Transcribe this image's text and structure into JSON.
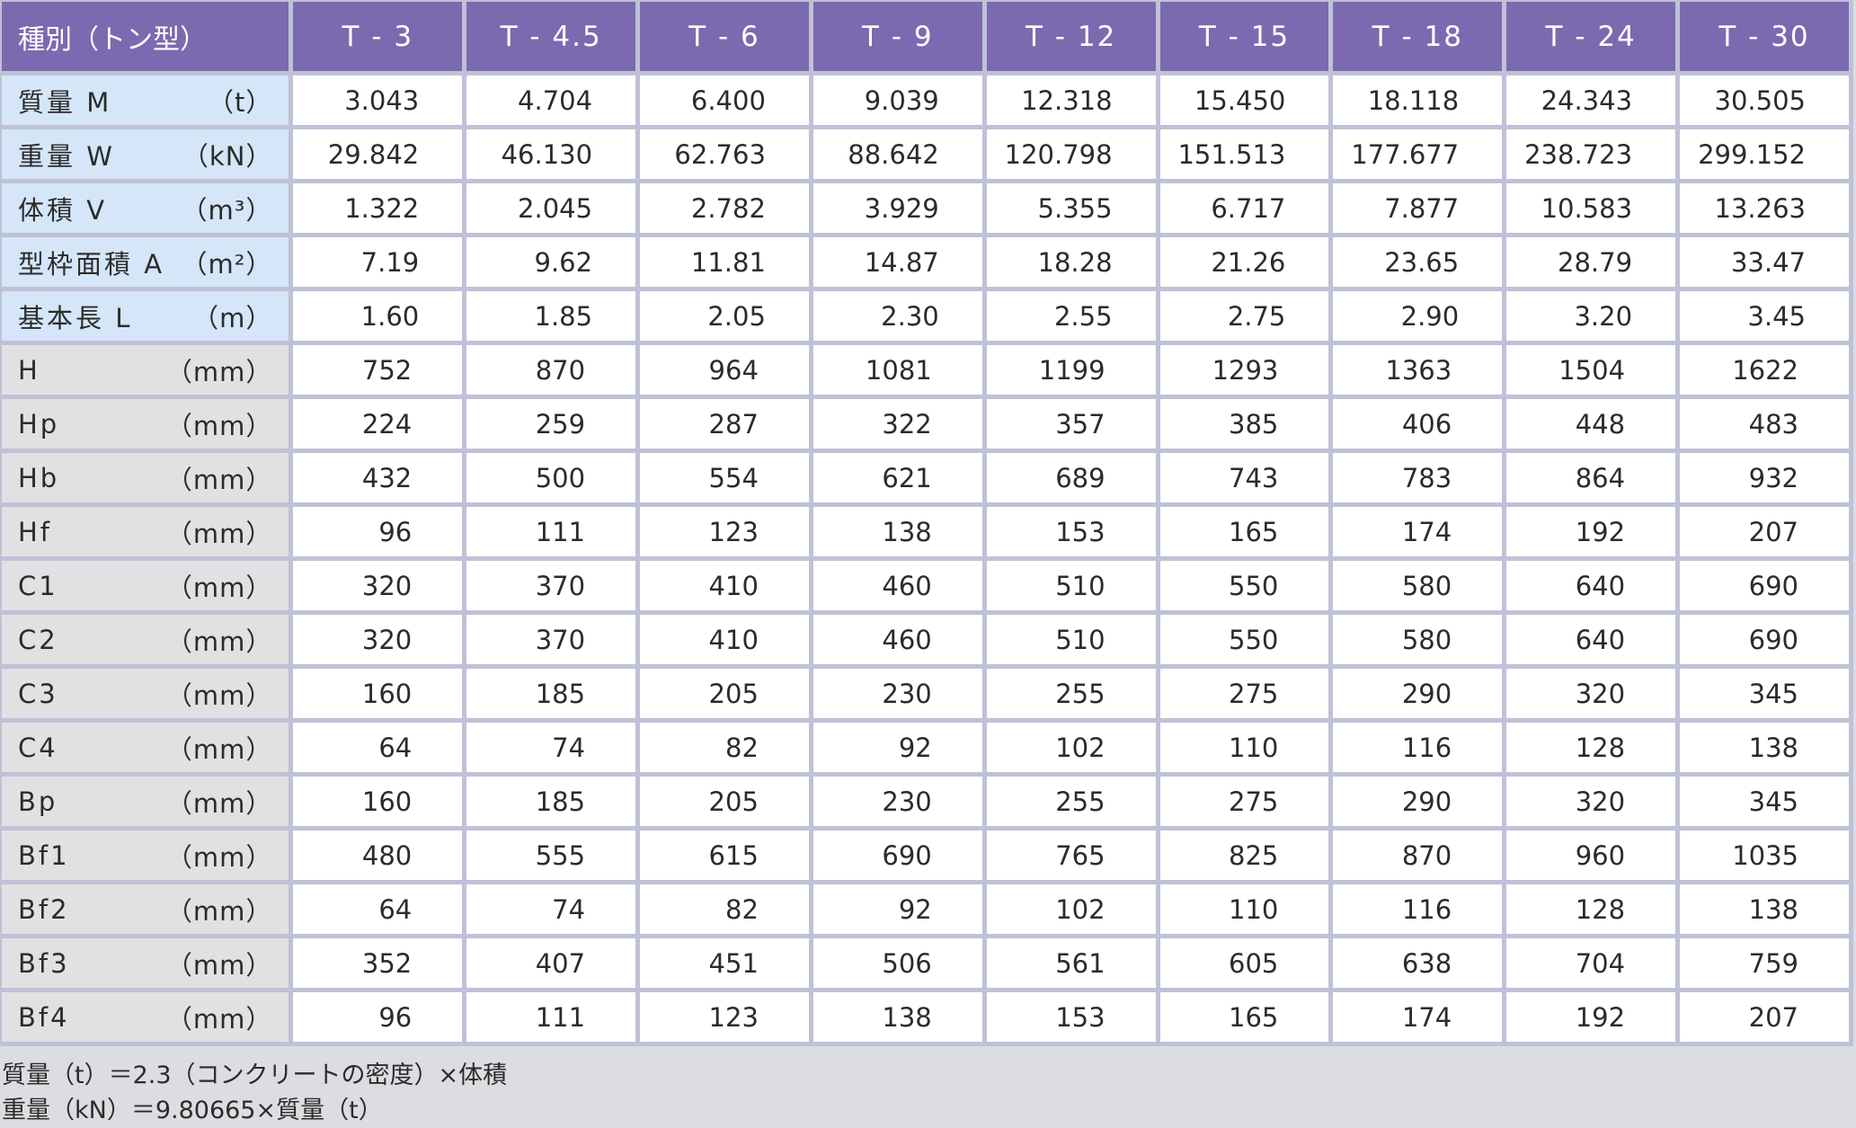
{
  "table": {
    "corner_label": "種別（トン型）",
    "columns": [
      "T - 3",
      "T - 4.5",
      "T - 6",
      "T - 9",
      "T - 12",
      "T - 15",
      "T - 18",
      "T - 24",
      "T - 30"
    ],
    "rows": [
      {
        "name": "質量 M",
        "unit": "（t）",
        "style": "blue",
        "values": [
          "3.043",
          "4.704",
          "6.400",
          "9.039",
          "12.318",
          "15.450",
          "18.118",
          "24.343",
          "30.505"
        ]
      },
      {
        "name": "重量 W",
        "unit": "（kN）",
        "style": "blue",
        "values": [
          "29.842",
          "46.130",
          "62.763",
          "88.642",
          "120.798",
          "151.513",
          "177.677",
          "238.723",
          "299.152"
        ]
      },
      {
        "name": "体積 V",
        "unit": "（m³）",
        "style": "blue",
        "values": [
          "1.322",
          "2.045",
          "2.782",
          "3.929",
          "5.355",
          "6.717",
          "7.877",
          "10.583",
          "13.263"
        ]
      },
      {
        "name": "型枠面積 A",
        "unit": "（m²）",
        "style": "blue",
        "values": [
          "7.19",
          "9.62",
          "11.81",
          "14.87",
          "18.28",
          "21.26",
          "23.65",
          "28.79",
          "33.47"
        ]
      },
      {
        "name": "基本長 L",
        "unit": "（m）",
        "style": "blue",
        "values": [
          "1.60",
          "1.85",
          "2.05",
          "2.30",
          "2.55",
          "2.75",
          "2.90",
          "3.20",
          "3.45"
        ]
      },
      {
        "name": "H",
        "unit": "（mm）",
        "style": "gray",
        "values": [
          "752",
          "870",
          "964",
          "1081",
          "1199",
          "1293",
          "1363",
          "1504",
          "1622"
        ]
      },
      {
        "name": "Hp",
        "unit": "（mm）",
        "style": "gray",
        "values": [
          "224",
          "259",
          "287",
          "322",
          "357",
          "385",
          "406",
          "448",
          "483"
        ]
      },
      {
        "name": "Hb",
        "unit": "（mm）",
        "style": "gray",
        "values": [
          "432",
          "500",
          "554",
          "621",
          "689",
          "743",
          "783",
          "864",
          "932"
        ]
      },
      {
        "name": "Hf",
        "unit": "（mm）",
        "style": "gray",
        "values": [
          "96",
          "111",
          "123",
          "138",
          "153",
          "165",
          "174",
          "192",
          "207"
        ]
      },
      {
        "name": "C1",
        "unit": "（mm）",
        "style": "gray",
        "values": [
          "320",
          "370",
          "410",
          "460",
          "510",
          "550",
          "580",
          "640",
          "690"
        ]
      },
      {
        "name": "C2",
        "unit": "（mm）",
        "style": "gray",
        "values": [
          "320",
          "370",
          "410",
          "460",
          "510",
          "550",
          "580",
          "640",
          "690"
        ]
      },
      {
        "name": "C3",
        "unit": "（mm）",
        "style": "gray",
        "values": [
          "160",
          "185",
          "205",
          "230",
          "255",
          "275",
          "290",
          "320",
          "345"
        ]
      },
      {
        "name": "C4",
        "unit": "（mm）",
        "style": "gray",
        "values": [
          "64",
          "74",
          "82",
          "92",
          "102",
          "110",
          "116",
          "128",
          "138"
        ]
      },
      {
        "name": "Bp",
        "unit": "（mm）",
        "style": "gray",
        "values": [
          "160",
          "185",
          "205",
          "230",
          "255",
          "275",
          "290",
          "320",
          "345"
        ]
      },
      {
        "name": "Bf1",
        "unit": "（mm）",
        "style": "gray",
        "values": [
          "480",
          "555",
          "615",
          "690",
          "765",
          "825",
          "870",
          "960",
          "1035"
        ]
      },
      {
        "name": "Bf2",
        "unit": "（mm）",
        "style": "gray",
        "values": [
          "64",
          "74",
          "82",
          "92",
          "102",
          "110",
          "116",
          "128",
          "138"
        ]
      },
      {
        "name": "Bf3",
        "unit": "（mm）",
        "style": "gray",
        "values": [
          "352",
          "407",
          "451",
          "506",
          "561",
          "605",
          "638",
          "704",
          "759"
        ]
      },
      {
        "name": "Bf4",
        "unit": "（mm）",
        "style": "gray",
        "values": [
          "96",
          "111",
          "123",
          "138",
          "153",
          "165",
          "174",
          "192",
          "207"
        ]
      }
    ]
  },
  "notes": [
    "質量（t）＝2.3（コンクリートの密度）×体積",
    "重量（kN）＝9.80665×質量（t）"
  ],
  "colors": {
    "header_bg": "#7b6ab0",
    "label_blue_bg": "#d4e6f7",
    "label_gray_bg": "#e1e1e3",
    "grid": "#bfc1d6"
  }
}
